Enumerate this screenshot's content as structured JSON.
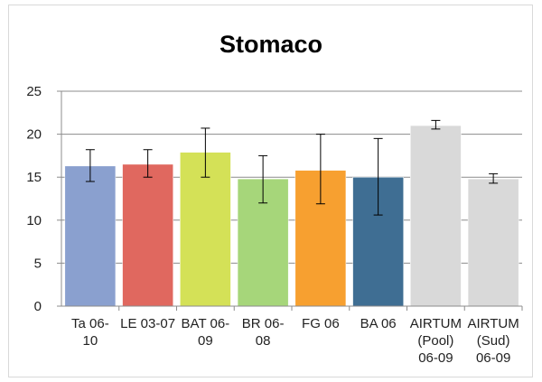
{
  "chart_data": {
    "type": "bar",
    "title": "Stomaco",
    "xlabel": "",
    "ylabel": "",
    "ylim": [
      0,
      25
    ],
    "yticks": [
      0,
      5,
      10,
      15,
      20,
      25
    ],
    "grid": true,
    "legend": "none",
    "categories": [
      [
        "Ta 06-",
        "10"
      ],
      [
        "LE 03-07"
      ],
      [
        "BAT 06-",
        "09"
      ],
      [
        "BR 06-",
        "08"
      ],
      [
        "FG 06"
      ],
      [
        "BA 06"
      ],
      [
        "AIRTUM",
        "(Pool)",
        "06-09"
      ],
      [
        "AIRTUM",
        "(Sud)",
        "06-09"
      ]
    ],
    "values": [
      16.3,
      16.5,
      17.9,
      14.8,
      15.8,
      15.0,
      21.0,
      14.8
    ],
    "error_low": [
      14.5,
      15.0,
      15.0,
      12.0,
      11.9,
      10.6,
      20.6,
      14.3
    ],
    "error_high": [
      18.2,
      18.2,
      20.7,
      17.5,
      20.0,
      19.5,
      21.6,
      15.4
    ],
    "colors": [
      "#8aa0cf",
      "#e0685f",
      "#d4e157",
      "#a6d67a",
      "#f7a030",
      "#3f6e93",
      "#d9d9d9",
      "#d9d9d9"
    ]
  }
}
